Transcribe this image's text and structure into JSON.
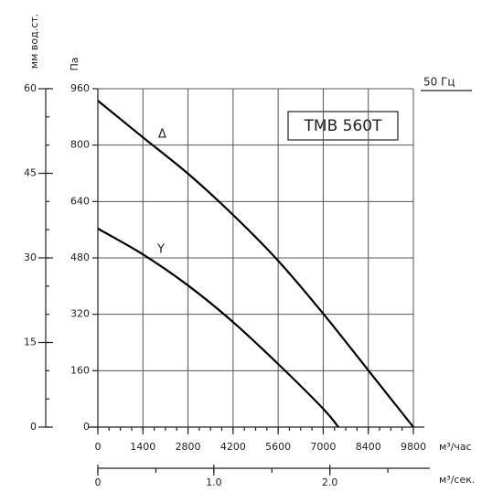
{
  "chart_data": {
    "type": "line",
    "x_label": "м³/час",
    "y_label": "Па",
    "y2_label": "мм вод.ст.",
    "x2_label": "м³/сек.",
    "annotations": [
      "TMB 560T",
      "50 Гц"
    ],
    "series": [
      {
        "name": "Δ",
        "color": "#000000",
        "x": [
          0,
          1400,
          2800,
          4200,
          5600,
          7000,
          8400,
          9800
        ],
        "values": [
          926,
          822,
          719,
          602,
          472,
          322,
          161,
          0
        ]
      },
      {
        "name": "Y",
        "color": "#000000",
        "x": [
          0,
          1400,
          2800,
          4200,
          5600,
          7000,
          7470
        ],
        "values": [
          563,
          490,
          402,
          298,
          179,
          52,
          0
        ]
      }
    ],
    "xlim": [
      0,
      9800
    ],
    "xticks": [
      0,
      1400,
      2800,
      4200,
      5600,
      7000,
      8400,
      9800
    ],
    "ylim": [
      0,
      960
    ],
    "yticks": [
      0,
      160,
      320,
      480,
      640,
      800,
      960
    ],
    "y2lim": [
      0,
      60
    ],
    "y2ticks": [
      0,
      15,
      30,
      45,
      60
    ],
    "x2lim": [
      0,
      2.72
    ],
    "x2ticks": [
      0,
      {
        "value": 1,
        "label": "1.0"
      },
      {
        "value": 2,
        "label": "2.0"
      }
    ],
    "grid": true
  }
}
